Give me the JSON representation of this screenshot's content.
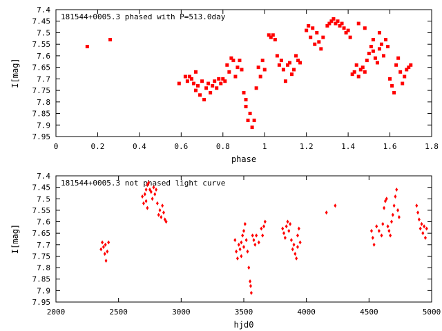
{
  "chart_data": [
    {
      "type": "scatter",
      "title": "181544+0005.3 phased with P=513.0day",
      "xlabel": "phase",
      "ylabel": "I[mag]",
      "xlim": [
        0,
        1.8
      ],
      "ylim": [
        7.95,
        7.4
      ],
      "y_inverted": true,
      "grid": false,
      "color": "#ff0000",
      "x_ticks": [
        0,
        0.2,
        0.4,
        0.6,
        0.8,
        1,
        1.2,
        1.4,
        1.6,
        1.8
      ],
      "y_ticks": [
        7.4,
        7.45,
        7.5,
        7.55,
        7.6,
        7.65,
        7.7,
        7.75,
        7.8,
        7.85,
        7.9,
        7.95
      ],
      "points": [
        [
          0.15,
          7.56
        ],
        [
          0.26,
          7.53
        ],
        [
          0.59,
          7.72
        ],
        [
          0.62,
          7.69
        ],
        [
          0.63,
          7.71
        ],
        [
          0.64,
          7.69
        ],
        [
          0.65,
          7.7
        ],
        [
          0.66,
          7.72
        ],
        [
          0.67,
          7.67
        ],
        [
          0.67,
          7.75
        ],
        [
          0.68,
          7.73
        ],
        [
          0.69,
          7.77
        ],
        [
          0.7,
          7.71
        ],
        [
          0.71,
          7.79
        ],
        [
          0.72,
          7.74
        ],
        [
          0.73,
          7.72
        ],
        [
          0.74,
          7.76
        ],
        [
          0.75,
          7.73
        ],
        [
          0.76,
          7.71
        ],
        [
          0.77,
          7.74
        ],
        [
          0.78,
          7.7
        ],
        [
          0.79,
          7.72
        ],
        [
          0.8,
          7.7
        ],
        [
          0.81,
          7.71
        ],
        [
          0.82,
          7.64
        ],
        [
          0.83,
          7.67
        ],
        [
          0.84,
          7.61
        ],
        [
          0.85,
          7.62
        ],
        [
          0.86,
          7.69
        ],
        [
          0.87,
          7.65
        ],
        [
          0.88,
          7.62
        ],
        [
          0.89,
          7.66
        ],
        [
          0.9,
          7.76
        ],
        [
          0.91,
          7.79
        ],
        [
          0.91,
          7.82
        ],
        [
          0.92,
          7.88
        ],
        [
          0.93,
          7.85
        ],
        [
          0.94,
          7.91
        ],
        [
          0.95,
          7.88
        ],
        [
          0.96,
          7.74
        ],
        [
          0.97,
          7.65
        ],
        [
          0.98,
          7.69
        ],
        [
          0.99,
          7.62
        ],
        [
          1.0,
          7.66
        ],
        [
          1.02,
          7.51
        ],
        [
          1.03,
          7.52
        ],
        [
          1.04,
          7.51
        ],
        [
          1.05,
          7.53
        ],
        [
          1.06,
          7.6
        ],
        [
          1.07,
          7.64
        ],
        [
          1.08,
          7.62
        ],
        [
          1.09,
          7.66
        ],
        [
          1.1,
          7.71
        ],
        [
          1.11,
          7.64
        ],
        [
          1.12,
          7.63
        ],
        [
          1.13,
          7.68
        ],
        [
          1.14,
          7.66
        ],
        [
          1.15,
          7.6
        ],
        [
          1.16,
          7.62
        ],
        [
          1.17,
          7.63
        ],
        [
          1.2,
          7.49
        ],
        [
          1.21,
          7.47
        ],
        [
          1.22,
          7.52
        ],
        [
          1.23,
          7.48
        ],
        [
          1.24,
          7.55
        ],
        [
          1.25,
          7.5
        ],
        [
          1.26,
          7.54
        ],
        [
          1.27,
          7.57
        ],
        [
          1.28,
          7.52
        ],
        [
          1.3,
          7.47
        ],
        [
          1.31,
          7.46
        ],
        [
          1.32,
          7.45
        ],
        [
          1.33,
          7.44
        ],
        [
          1.34,
          7.46
        ],
        [
          1.35,
          7.45
        ],
        [
          1.36,
          7.47
        ],
        [
          1.37,
          7.46
        ],
        [
          1.38,
          7.48
        ],
        [
          1.39,
          7.5
        ],
        [
          1.4,
          7.49
        ],
        [
          1.41,
          7.52
        ],
        [
          1.42,
          7.68
        ],
        [
          1.43,
          7.67
        ],
        [
          1.44,
          7.64
        ],
        [
          1.45,
          7.69
        ],
        [
          1.46,
          7.66
        ],
        [
          1.47,
          7.65
        ],
        [
          1.48,
          7.67
        ],
        [
          1.49,
          7.62
        ],
        [
          1.5,
          7.59
        ],
        [
          1.51,
          7.56
        ],
        [
          1.52,
          7.58
        ],
        [
          1.53,
          7.61
        ],
        [
          1.54,
          7.63
        ],
        [
          1.55,
          7.57
        ],
        [
          1.56,
          7.55
        ],
        [
          1.57,
          7.6
        ],
        [
          1.58,
          7.53
        ],
        [
          1.59,
          7.56
        ],
        [
          1.6,
          7.7
        ],
        [
          1.61,
          7.73
        ],
        [
          1.62,
          7.76
        ],
        [
          1.63,
          7.64
        ],
        [
          1.64,
          7.61
        ],
        [
          1.65,
          7.67
        ],
        [
          1.66,
          7.72
        ],
        [
          1.67,
          7.69
        ],
        [
          1.68,
          7.66
        ],
        [
          1.69,
          7.65
        ],
        [
          1.7,
          7.64
        ],
        [
          1.45,
          7.46
        ],
        [
          1.48,
          7.48
        ],
        [
          1.52,
          7.53
        ],
        [
          1.55,
          7.5
        ]
      ]
    },
    {
      "type": "scatter",
      "title": "181544+0005.3 not phased light curve",
      "xlabel": "hjd0",
      "ylabel": "I[mag]",
      "xlim": [
        2000,
        5000
      ],
      "ylim": [
        7.95,
        7.4
      ],
      "y_inverted": true,
      "grid": false,
      "color": "#ff0000",
      "x_ticks": [
        2000,
        2500,
        3000,
        3500,
        4000,
        4500,
        5000
      ],
      "y_ticks": [
        7.4,
        7.45,
        7.5,
        7.55,
        7.6,
        7.65,
        7.7,
        7.75,
        7.8,
        7.85,
        7.9,
        7.95
      ],
      "points": [
        [
          2360,
          7.72
        ],
        [
          2370,
          7.69
        ],
        [
          2380,
          7.71
        ],
        [
          2390,
          7.74
        ],
        [
          2400,
          7.77
        ],
        [
          2410,
          7.73
        ],
        [
          2420,
          7.69
        ],
        [
          2395,
          7.7
        ],
        [
          2690,
          7.49
        ],
        [
          2700,
          7.52
        ],
        [
          2710,
          7.48
        ],
        [
          2720,
          7.46
        ],
        [
          2730,
          7.44
        ],
        [
          2740,
          7.43
        ],
        [
          2750,
          7.46
        ],
        [
          2760,
          7.47
        ],
        [
          2770,
          7.5
        ],
        [
          2780,
          7.45
        ],
        [
          2790,
          7.48
        ],
        [
          2800,
          7.46
        ],
        [
          2810,
          7.52
        ],
        [
          2820,
          7.57
        ],
        [
          2830,
          7.55
        ],
        [
          2840,
          7.58
        ],
        [
          2850,
          7.53
        ],
        [
          2860,
          7.56
        ],
        [
          2870,
          7.59
        ],
        [
          2880,
          7.6
        ],
        [
          2720,
          7.51
        ],
        [
          2730,
          7.54
        ],
        [
          3430,
          7.68
        ],
        [
          3440,
          7.73
        ],
        [
          3450,
          7.76
        ],
        [
          3460,
          7.7
        ],
        [
          3470,
          7.72
        ],
        [
          3480,
          7.69
        ],
        [
          3490,
          7.66
        ],
        [
          3500,
          7.64
        ],
        [
          3510,
          7.61
        ],
        [
          3520,
          7.68
        ],
        [
          3530,
          7.73
        ],
        [
          3540,
          7.8
        ],
        [
          3550,
          7.86
        ],
        [
          3555,
          7.88
        ],
        [
          3560,
          7.91
        ],
        [
          3570,
          7.66
        ],
        [
          3580,
          7.68
        ],
        [
          3590,
          7.7
        ],
        [
          3600,
          7.66
        ],
        [
          3620,
          7.69
        ],
        [
          3640,
          7.63
        ],
        [
          3650,
          7.66
        ],
        [
          3660,
          7.62
        ],
        [
          3670,
          7.6
        ],
        [
          3480,
          7.75
        ],
        [
          3500,
          7.71
        ],
        [
          3810,
          7.63
        ],
        [
          3820,
          7.65
        ],
        [
          3830,
          7.67
        ],
        [
          3840,
          7.62
        ],
        [
          3850,
          7.6
        ],
        [
          3860,
          7.64
        ],
        [
          3870,
          7.61
        ],
        [
          3880,
          7.68
        ],
        [
          3890,
          7.72
        ],
        [
          3900,
          7.7
        ],
        [
          3910,
          7.74
        ],
        [
          3920,
          7.76
        ],
        [
          3930,
          7.66
        ],
        [
          3940,
          7.63
        ],
        [
          3950,
          7.69
        ],
        [
          3930,
          7.71
        ],
        [
          4160,
          7.56
        ],
        [
          4230,
          7.53
        ],
        [
          4520,
          7.64
        ],
        [
          4530,
          7.67
        ],
        [
          4540,
          7.7
        ],
        [
          4560,
          7.62
        ],
        [
          4580,
          7.64
        ],
        [
          4600,
          7.66
        ],
        [
          4610,
          7.61
        ],
        [
          4620,
          7.54
        ],
        [
          4630,
          7.51
        ],
        [
          4640,
          7.5
        ],
        [
          4650,
          7.62
        ],
        [
          4660,
          7.64
        ],
        [
          4670,
          7.66
        ],
        [
          4680,
          7.6
        ],
        [
          4690,
          7.57
        ],
        [
          4700,
          7.53
        ],
        [
          4710,
          7.49
        ],
        [
          4720,
          7.46
        ],
        [
          4730,
          7.55
        ],
        [
          4740,
          7.58
        ],
        [
          4880,
          7.53
        ],
        [
          4890,
          7.56
        ],
        [
          4900,
          7.59
        ],
        [
          4910,
          7.63
        ],
        [
          4920,
          7.61
        ],
        [
          4930,
          7.65
        ],
        [
          4940,
          7.62
        ],
        [
          4950,
          7.67
        ],
        [
          4960,
          7.63
        ]
      ]
    }
  ]
}
